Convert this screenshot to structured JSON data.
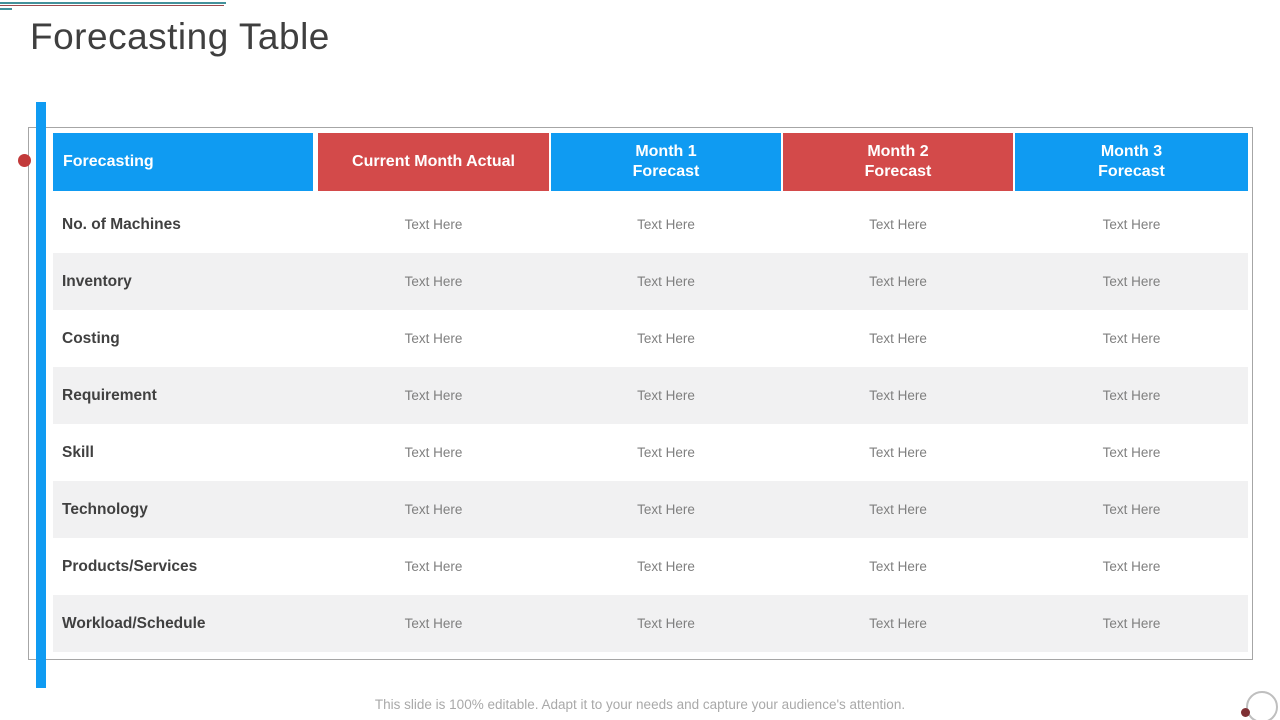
{
  "slide": {
    "title": "Forecasting Table",
    "footer": "This slide is 100% editable. Adapt it to your needs and capture your audience's attention."
  },
  "colors": {
    "blue": "#0F9BF2",
    "red": "#D34A4A",
    "row_alt": "#F1F1F2",
    "dot_red": "#C23A3A",
    "line_teal": "#43919B",
    "line_red": "#9C4A4E"
  },
  "table": {
    "columns": [
      {
        "label": "Forecasting",
        "header_color": "blue"
      },
      {
        "label": "Current Month Actual",
        "header_color": "red"
      },
      {
        "label": "Month 1\nForecast",
        "header_color": "blue"
      },
      {
        "label": "Month 2\nForecast",
        "header_color": "red"
      },
      {
        "label": "Month 3\nForecast",
        "header_color": "blue"
      }
    ],
    "rows": [
      {
        "label": "No. of Machines",
        "cells": [
          "Text Here",
          "Text Here",
          "Text Here",
          "Text Here"
        ]
      },
      {
        "label": "Inventory",
        "cells": [
          "Text Here",
          "Text Here",
          "Text Here",
          "Text Here"
        ]
      },
      {
        "label": "Costing",
        "cells": [
          "Text Here",
          "Text Here",
          "Text Here",
          "Text Here"
        ]
      },
      {
        "label": "Requirement",
        "cells": [
          "Text Here",
          "Text Here",
          "Text Here",
          "Text Here"
        ]
      },
      {
        "label": "Skill",
        "cells": [
          "Text Here",
          "Text Here",
          "Text Here",
          "Text Here"
        ]
      },
      {
        "label": "Technology",
        "cells": [
          "Text Here",
          "Text Here",
          "Text Here",
          "Text Here"
        ]
      },
      {
        "label": "Products/Services",
        "cells": [
          "Text Here",
          "Text Here",
          "Text Here",
          "Text Here"
        ]
      },
      {
        "label": "Workload/Schedule",
        "cells": [
          "Text Here",
          "Text Here",
          "Text Here",
          "Text Here"
        ]
      }
    ]
  }
}
